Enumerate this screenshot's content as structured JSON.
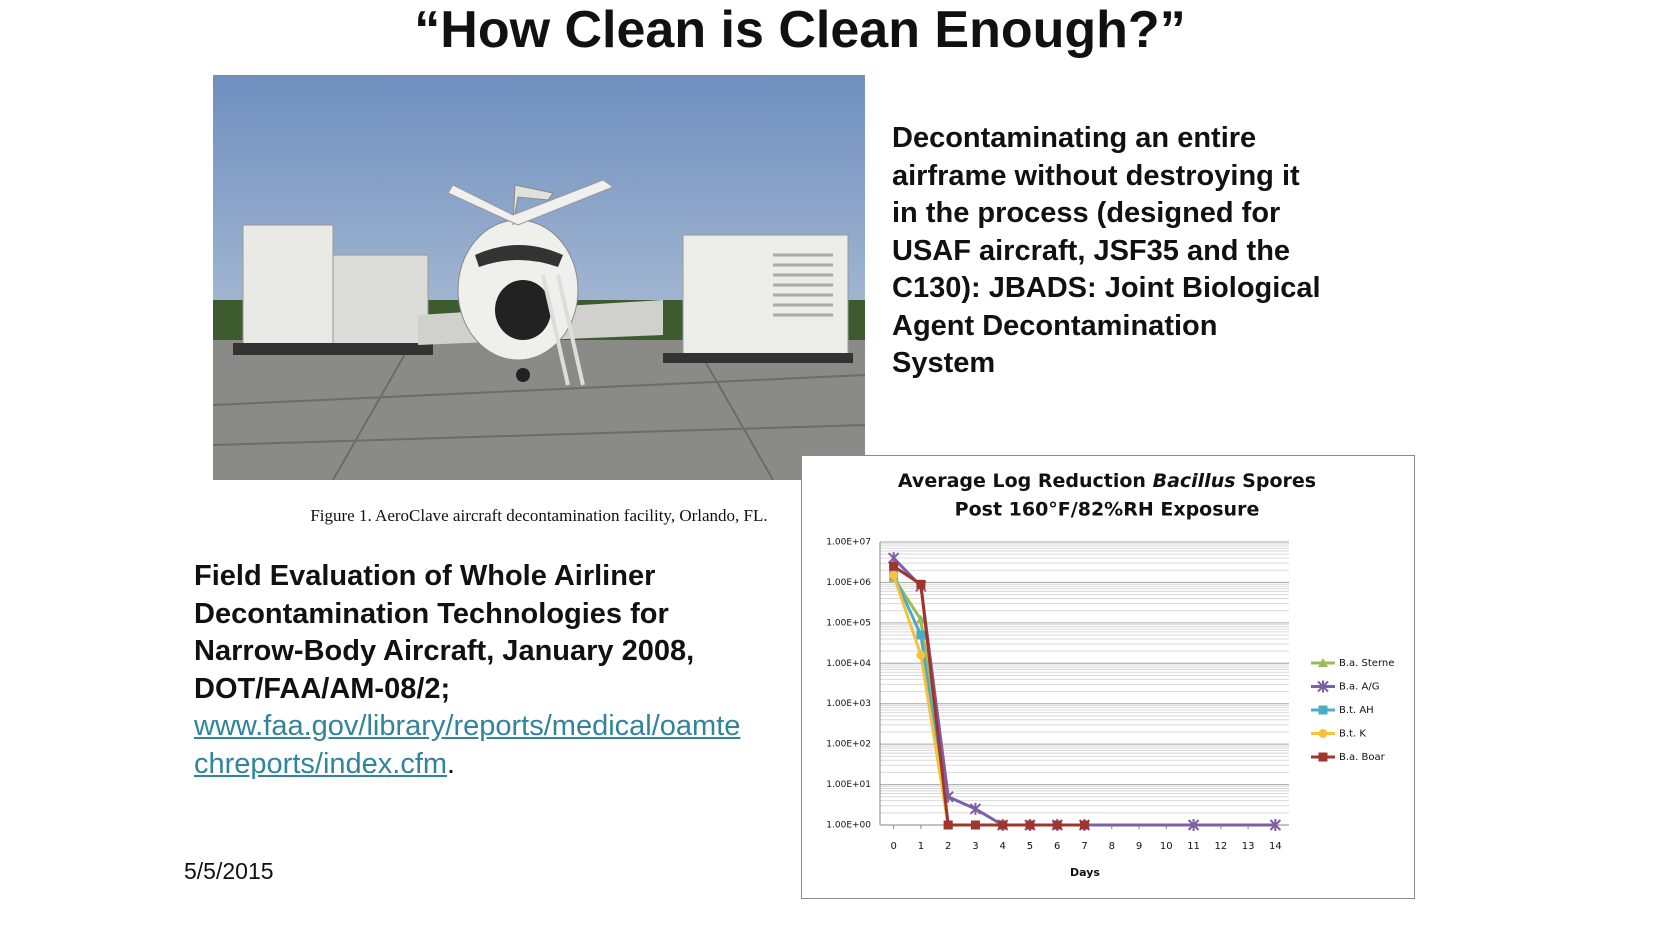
{
  "title": "“How Clean is Clean Enough?”",
  "photo_caption": "Figure 1.  AeroClave aircraft decontamination facility, Orlando, FL.",
  "description": {
    "lines": [
      "Decontaminating an entire",
      "airframe without destroying it",
      "in the process (designed for",
      "USAF aircraft, JSF35 and the",
      "C130): JBADS: Joint Biological",
      "Agent Decontamination",
      "System"
    ]
  },
  "citation": {
    "lines": [
      "Field Evaluation of Whole Airliner",
      "Decontamination Technologies for",
      "Narrow-Body Aircraft, January 2008,",
      "DOT/FAA/AM-08/2;"
    ],
    "link_lines": [
      "www.faa.gov/library/reports/medical/oamte",
      "chreports/index.cfm"
    ],
    "end": "."
  },
  "date": "5/5/2015",
  "chart_data": {
    "type": "line",
    "title": "Average Log Reduction",
    "title_emphasis": "Bacillus",
    "title_end": "Spores",
    "subtitle": "Post 160°F/82%RH Exposure",
    "x_label": "Days",
    "x": [
      0,
      1,
      2,
      3,
      4,
      5,
      6,
      7,
      11,
      14
    ],
    "xlim": [
      -0.5,
      14.5
    ],
    "xticks": [
      0,
      1,
      2,
      3,
      4,
      5,
      6,
      7,
      8,
      9,
      10,
      11,
      12,
      13,
      14
    ],
    "ylim": [
      1,
      10000000
    ],
    "log_y": true,
    "grid": true,
    "legend": "right",
    "yticks": [
      {
        "value": 1,
        "label": "1.00E+00"
      },
      {
        "value": 10,
        "label": "1.00E+01"
      },
      {
        "value": 100,
        "label": "1.00E+02"
      },
      {
        "value": 1000,
        "label": "1.00E+03"
      },
      {
        "value": 10000,
        "label": "1.00E+04"
      },
      {
        "value": 100000,
        "label": "1.00E+05"
      },
      {
        "value": 1000000,
        "label": "1.00E+06"
      },
      {
        "value": 10000000,
        "label": "1.00E+07"
      }
    ],
    "series": [
      {
        "name": "B.a. Sterne",
        "color": "#9bbb59",
        "marker": "triangle",
        "values": [
          1300000,
          120000,
          1,
          null,
          null,
          null,
          null,
          null,
          null,
          null
        ]
      },
      {
        "name": "B.a. A/G",
        "color": "#7e5fa3",
        "marker": "cross",
        "values": [
          4000000,
          800000,
          5,
          2.5,
          1,
          1,
          1,
          1,
          1,
          1
        ]
      },
      {
        "name": "B.t. AH",
        "color": "#4bacc6",
        "marker": "square",
        "values": [
          1500000,
          50000,
          1,
          null,
          null,
          null,
          null,
          null,
          null,
          null
        ]
      },
      {
        "name": "B.t. K",
        "color": "#f6c23e",
        "marker": "circle",
        "values": [
          1500000,
          16000,
          1,
          null,
          null,
          null,
          null,
          null,
          null,
          null
        ]
      },
      {
        "name": "B.a. Boar",
        "color": "#a0352e",
        "marker": "square",
        "values": [
          2500000,
          900000,
          1,
          1,
          1,
          1,
          1,
          1,
          null,
          null
        ]
      }
    ]
  }
}
